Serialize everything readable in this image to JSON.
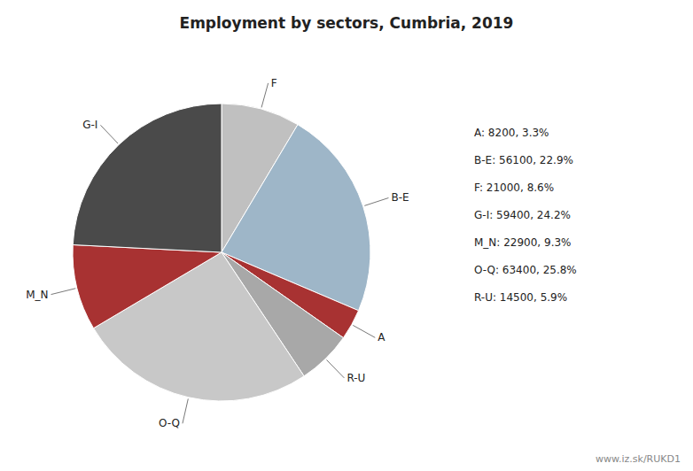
{
  "chart_data": {
    "type": "pie",
    "title": "Employment by sectors, Cumbria, 2019",
    "categories": [
      "F",
      "B-E",
      "A",
      "R-U",
      "O-Q",
      "M_N",
      "G-I"
    ],
    "values": [
      21000,
      56100,
      8200,
      14500,
      63400,
      22900,
      59400
    ],
    "colors": [
      "#c0c0c0",
      "#9eb6c8",
      "#a83232",
      "#a8a8a8",
      "#c8c8c8",
      "#a83232",
      "#4a4a4a"
    ],
    "annotations": [
      "A: 8200, 3.3%",
      "B-E: 56100, 22.9%",
      "F: 21000, 8.6%",
      "G-I: 59400, 24.2%",
      "M_N: 22900, 9.3%",
      "O-Q: 63400, 25.8%",
      "R-U: 14500, 5.9%",
      "www.iz.sk/RUKD1"
    ]
  }
}
